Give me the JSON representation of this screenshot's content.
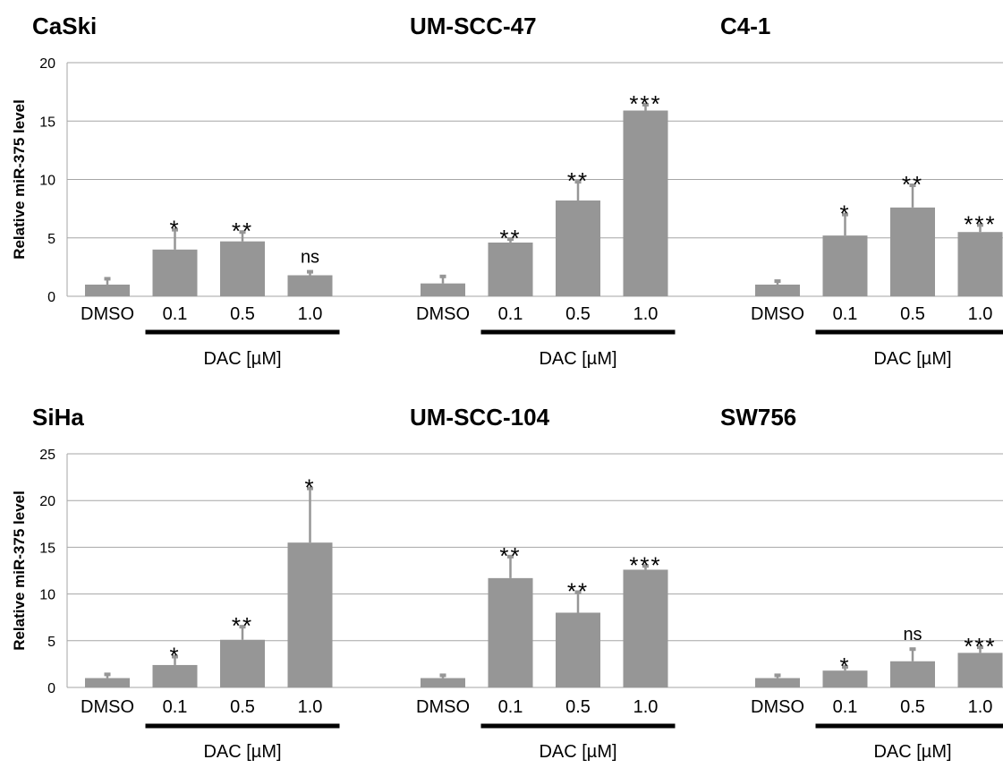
{
  "figure": {
    "ylabel": "Relative miR-375 level",
    "bar_color": "#969696",
    "gridline_color": "#a6a6a6",
    "bracket_color": "#000000"
  },
  "chart_data": [
    {
      "type": "bar",
      "title": "CaSki",
      "row": 0,
      "col": 0,
      "categories": [
        "DMSO",
        "0.1",
        "0.5",
        "1.0"
      ],
      "values": [
        1.0,
        4.0,
        4.7,
        1.8
      ],
      "errors": [
        0.5,
        1.7,
        0.8,
        0.3
      ],
      "significance": [
        "",
        "*",
        "**",
        "ns"
      ],
      "ylim": [
        0,
        20
      ],
      "yticks": [
        "0",
        "5",
        "10",
        "15",
        "20"
      ],
      "ylabel": "Relative miR-375 level",
      "group_label": "DAC [µM]",
      "grid": true
    },
    {
      "type": "bar",
      "title": "UM-SCC-47",
      "row": 0,
      "col": 1,
      "categories": [
        "DMSO",
        "0.1",
        "0.5",
        "1.0"
      ],
      "values": [
        1.1,
        4.6,
        8.2,
        15.9
      ],
      "errors": [
        0.6,
        0.3,
        1.6,
        0.5
      ],
      "significance": [
        "",
        "**",
        "**",
        "***"
      ],
      "ylim": [
        0,
        20
      ],
      "yticks": [],
      "ylabel": "",
      "group_label": "DAC [µM]",
      "grid": true
    },
    {
      "type": "bar",
      "title": "C4-1",
      "row": 0,
      "col": 2,
      "categories": [
        "DMSO",
        "0.1",
        "0.5",
        "1.0"
      ],
      "values": [
        1.0,
        5.2,
        7.6,
        5.5
      ],
      "errors": [
        0.3,
        1.8,
        1.9,
        0.6
      ],
      "significance": [
        "",
        "*",
        "**",
        "***"
      ],
      "ylim": [
        0,
        20
      ],
      "yticks": [],
      "ylabel": "",
      "group_label": "DAC [µM]",
      "grid": true
    },
    {
      "type": "bar",
      "title": "SiHa",
      "row": 1,
      "col": 0,
      "categories": [
        "DMSO",
        "0.1",
        "0.5",
        "1.0"
      ],
      "values": [
        1.0,
        2.4,
        5.1,
        15.5
      ],
      "errors": [
        0.4,
        0.9,
        1.4,
        5.8
      ],
      "significance": [
        "",
        "*",
        "**",
        "*"
      ],
      "ylim": [
        0,
        25
      ],
      "yticks": [
        "0",
        "5",
        "10",
        "15",
        "20",
        "25"
      ],
      "ylabel": "Relative miR-375 level",
      "group_label": "DAC [µM]",
      "grid": true
    },
    {
      "type": "bar",
      "title": "UM-SCC-104",
      "row": 1,
      "col": 1,
      "categories": [
        "DMSO",
        "0.1",
        "0.5",
        "1.0"
      ],
      "values": [
        1.0,
        11.7,
        8.0,
        12.6
      ],
      "errors": [
        0.3,
        2.3,
        2.2,
        0.4
      ],
      "significance": [
        "",
        "**",
        "**",
        "***"
      ],
      "ylim": [
        0,
        25
      ],
      "yticks": [],
      "ylabel": "",
      "group_label": "DAC [µM]",
      "grid": true
    },
    {
      "type": "bar",
      "title": "SW756",
      "row": 1,
      "col": 2,
      "categories": [
        "DMSO",
        "0.1",
        "0.5",
        "1.0"
      ],
      "values": [
        1.0,
        1.8,
        2.8,
        3.7
      ],
      "errors": [
        0.3,
        0.4,
        1.3,
        0.6
      ],
      "significance": [
        "",
        "*",
        "ns",
        "***"
      ],
      "ylim": [
        0,
        25
      ],
      "yticks": [],
      "ylabel": "",
      "group_label": "DAC [µM]",
      "grid": true
    }
  ]
}
